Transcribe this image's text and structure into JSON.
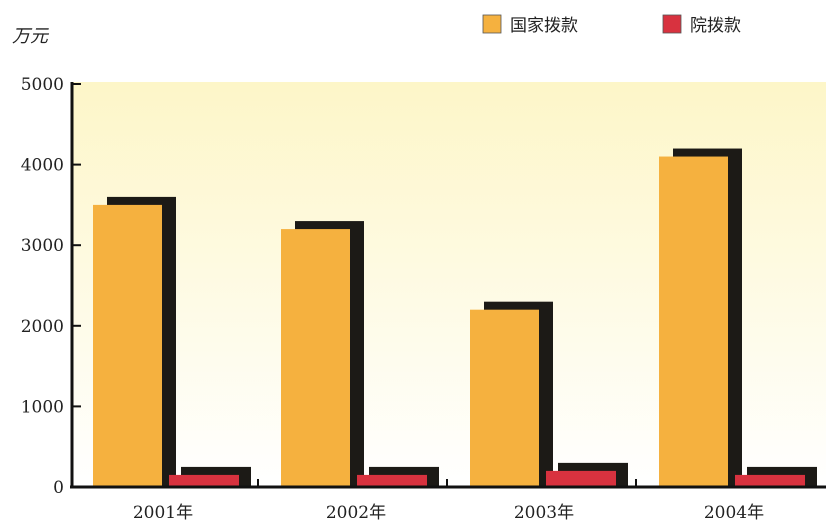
{
  "chart_data": {
    "type": "bar",
    "unit": "万元",
    "categories": [
      "2001年",
      "2002年",
      "2003年",
      "2004年"
    ],
    "series": [
      {
        "name": "国家拨款",
        "values": [
          3500,
          3200,
          2200,
          4100
        ],
        "color": "#F5B13F"
      },
      {
        "name": "院拨款",
        "values": [
          150,
          150,
          200,
          150
        ],
        "color": "#D8323F"
      }
    ],
    "ylim": [
      0,
      5000
    ],
    "yticks": [
      0,
      1000,
      2000,
      3000,
      4000,
      5000
    ],
    "legend_position": "top-right",
    "shadow_color": "#1c1a16",
    "background": {
      "top": "#FDF6C8",
      "bottom": "#FFFFFF"
    }
  }
}
